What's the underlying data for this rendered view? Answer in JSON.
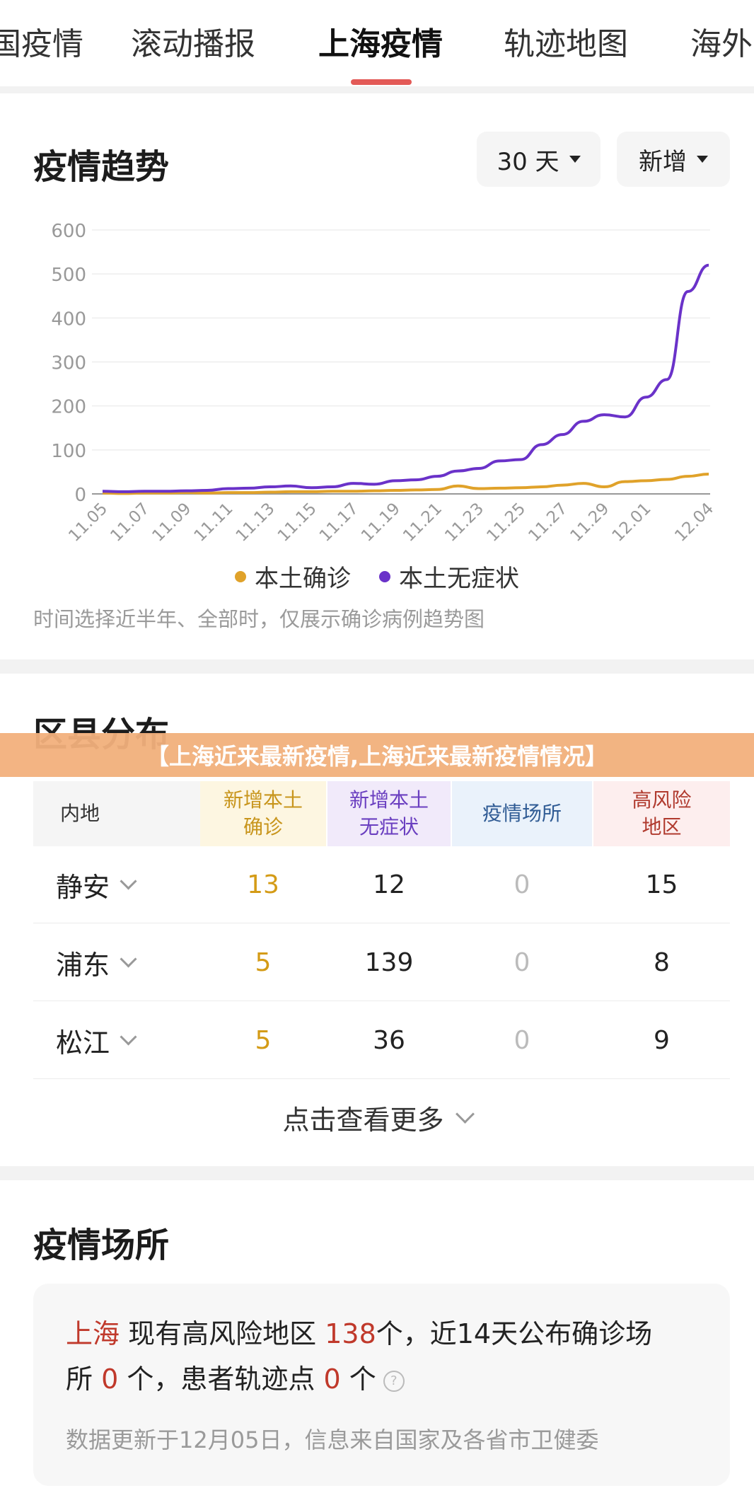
{
  "tabs": [
    "国疫情",
    "滚动播报",
    "上海疫情",
    "轨迹地图",
    "海外"
  ],
  "active_tab": 2,
  "trend": {
    "title": "疫情趋势",
    "range_label": "30 天",
    "metric_label": "新增",
    "legend": [
      "本土确诊",
      "本土无症状"
    ],
    "note": "时间选择近半年、全部时，仅展示确诊病例趋势图"
  },
  "colors": {
    "confirmed": "#e0a22a",
    "asymptomatic": "#6a32c9",
    "accent": "#e35a57"
  },
  "chart_data": {
    "type": "line",
    "x": [
      "11.05",
      "11.06",
      "11.07",
      "11.08",
      "11.09",
      "11.10",
      "11.11",
      "11.12",
      "11.13",
      "11.14",
      "11.15",
      "11.16",
      "11.17",
      "11.18",
      "11.19",
      "11.20",
      "11.21",
      "11.22",
      "11.23",
      "11.24",
      "11.25",
      "11.26",
      "11.27",
      "11.28",
      "11.29",
      "11.30",
      "12.01",
      "12.02",
      "12.03",
      "12.04"
    ],
    "x_tick_labels": [
      "11.05",
      "11.07",
      "11.09",
      "11.11",
      "11.13",
      "11.15",
      "11.17",
      "11.19",
      "11.21",
      "11.23",
      "11.25",
      "11.27",
      "11.29",
      "12.01",
      "12.04"
    ],
    "yticks": [
      0,
      100,
      200,
      300,
      400,
      500,
      600
    ],
    "ylim": [
      0,
      600
    ],
    "series": [
      {
        "name": "本土确诊",
        "values": [
          2,
          1,
          2,
          2,
          3,
          2,
          3,
          3,
          4,
          5,
          5,
          6,
          6,
          7,
          8,
          9,
          10,
          18,
          12,
          13,
          14,
          16,
          20,
          24,
          16,
          28,
          30,
          33,
          40,
          45
        ]
      },
      {
        "name": "本土无症状",
        "values": [
          6,
          5,
          6,
          6,
          7,
          8,
          12,
          13,
          16,
          18,
          14,
          16,
          24,
          22,
          30,
          32,
          40,
          52,
          58,
          75,
          78,
          112,
          135,
          165,
          180,
          175,
          220,
          260,
          460,
          520
        ]
      }
    ]
  },
  "district": {
    "title": "区县分布",
    "banner": "【上海近来最新疫情,上海近来最新疫情情况】",
    "headers": [
      "内地",
      "新增本土\n确诊",
      "新增本土\n无症状",
      "疫情场所",
      "高风险\n地区"
    ],
    "rows": [
      {
        "name": "静安",
        "confirmed": "13",
        "asym": "12",
        "places": "0",
        "risk": "15"
      },
      {
        "name": "浦东",
        "confirmed": "5",
        "asym": "139",
        "places": "0",
        "risk": "8"
      },
      {
        "name": "松江",
        "confirmed": "5",
        "asym": "36",
        "places": "0",
        "risk": "9"
      }
    ],
    "more": "点击查看更多"
  },
  "places": {
    "title": "疫情场所",
    "city": "上海",
    "text1": "现有高风险地区",
    "risk_count": "138",
    "text2": "个，近14天公布确诊场",
    "text3": "所",
    "place_count": "0",
    "text4": "个，患者轨迹点",
    "trace_count": "0",
    "text5": "个",
    "help": "?",
    "update": "数据更新于12月05日，信息来自国家及各省市卫健委"
  }
}
